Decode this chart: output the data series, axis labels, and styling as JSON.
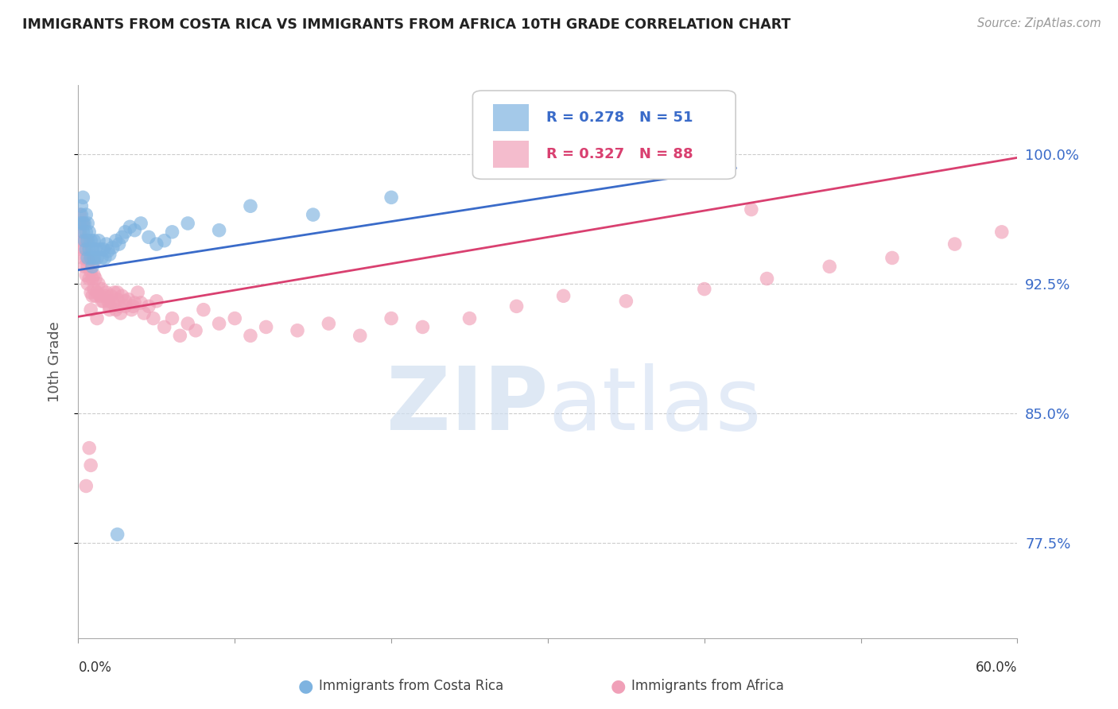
{
  "title": "IMMIGRANTS FROM COSTA RICA VS IMMIGRANTS FROM AFRICA 10TH GRADE CORRELATION CHART",
  "source_text": "Source: ZipAtlas.com",
  "ylabel": "10th Grade",
  "ytick_labels": [
    "77.5%",
    "85.0%",
    "92.5%",
    "100.0%"
  ],
  "ytick_values": [
    0.775,
    0.85,
    0.925,
    1.0
  ],
  "xlim": [
    0.0,
    0.6
  ],
  "ylim": [
    0.72,
    1.04
  ],
  "blue_color": "#7EB3E0",
  "pink_color": "#F0A0B8",
  "blue_line_color": "#3A6BC9",
  "pink_line_color": "#D94070",
  "blue_scatter_x": [
    0.001,
    0.002,
    0.002,
    0.003,
    0.003,
    0.003,
    0.004,
    0.004,
    0.005,
    0.005,
    0.005,
    0.006,
    0.006,
    0.006,
    0.007,
    0.007,
    0.008,
    0.008,
    0.009,
    0.009,
    0.01,
    0.01,
    0.011,
    0.012,
    0.013,
    0.014,
    0.015,
    0.016,
    0.017,
    0.018,
    0.019,
    0.02,
    0.022,
    0.024,
    0.026,
    0.028,
    0.03,
    0.033,
    0.036,
    0.04,
    0.045,
    0.05,
    0.06,
    0.07,
    0.09,
    0.11,
    0.15,
    0.2,
    0.025,
    0.38,
    0.055
  ],
  "blue_scatter_y": [
    0.96,
    0.965,
    0.97,
    0.955,
    0.96,
    0.975,
    0.95,
    0.96,
    0.945,
    0.955,
    0.965,
    0.94,
    0.95,
    0.96,
    0.945,
    0.955,
    0.94,
    0.95,
    0.935,
    0.945,
    0.94,
    0.95,
    0.945,
    0.94,
    0.95,
    0.945,
    0.94,
    0.945,
    0.94,
    0.948,
    0.944,
    0.942,
    0.946,
    0.95,
    0.948,
    0.952,
    0.955,
    0.958,
    0.956,
    0.96,
    0.952,
    0.948,
    0.955,
    0.96,
    0.956,
    0.97,
    0.965,
    0.975,
    0.78,
    0.99,
    0.95
  ],
  "pink_scatter_x": [
    0.001,
    0.001,
    0.002,
    0.002,
    0.003,
    0.003,
    0.003,
    0.004,
    0.004,
    0.005,
    0.005,
    0.005,
    0.006,
    0.006,
    0.007,
    0.007,
    0.008,
    0.008,
    0.009,
    0.009,
    0.01,
    0.01,
    0.01,
    0.011,
    0.011,
    0.012,
    0.013,
    0.014,
    0.015,
    0.016,
    0.017,
    0.018,
    0.019,
    0.02,
    0.021,
    0.022,
    0.023,
    0.024,
    0.025,
    0.026,
    0.027,
    0.028,
    0.03,
    0.032,
    0.034,
    0.036,
    0.038,
    0.04,
    0.042,
    0.045,
    0.048,
    0.05,
    0.055,
    0.06,
    0.065,
    0.07,
    0.075,
    0.08,
    0.09,
    0.1,
    0.11,
    0.12,
    0.14,
    0.16,
    0.18,
    0.2,
    0.22,
    0.25,
    0.28,
    0.31,
    0.35,
    0.4,
    0.44,
    0.48,
    0.52,
    0.56,
    0.59,
    0.008,
    0.012,
    0.015,
    0.02,
    0.025,
    0.03,
    0.035,
    0.005,
    0.008,
    0.43,
    0.007
  ],
  "pink_scatter_y": [
    0.955,
    0.965,
    0.945,
    0.96,
    0.94,
    0.95,
    0.96,
    0.935,
    0.945,
    0.93,
    0.94,
    0.95,
    0.925,
    0.935,
    0.928,
    0.938,
    0.92,
    0.932,
    0.918,
    0.928,
    0.922,
    0.93,
    0.938,
    0.918,
    0.928,
    0.92,
    0.925,
    0.918,
    0.922,
    0.915,
    0.918,
    0.92,
    0.915,
    0.912,
    0.918,
    0.914,
    0.92,
    0.91,
    0.916,
    0.912,
    0.908,
    0.918,
    0.912,
    0.916,
    0.91,
    0.914,
    0.92,
    0.914,
    0.908,
    0.912,
    0.905,
    0.915,
    0.9,
    0.905,
    0.895,
    0.902,
    0.898,
    0.91,
    0.902,
    0.905,
    0.895,
    0.9,
    0.898,
    0.902,
    0.895,
    0.905,
    0.9,
    0.905,
    0.912,
    0.918,
    0.915,
    0.922,
    0.928,
    0.935,
    0.94,
    0.948,
    0.955,
    0.91,
    0.905,
    0.915,
    0.91,
    0.92,
    0.915,
    0.912,
    0.808,
    0.82,
    0.968,
    0.83
  ]
}
